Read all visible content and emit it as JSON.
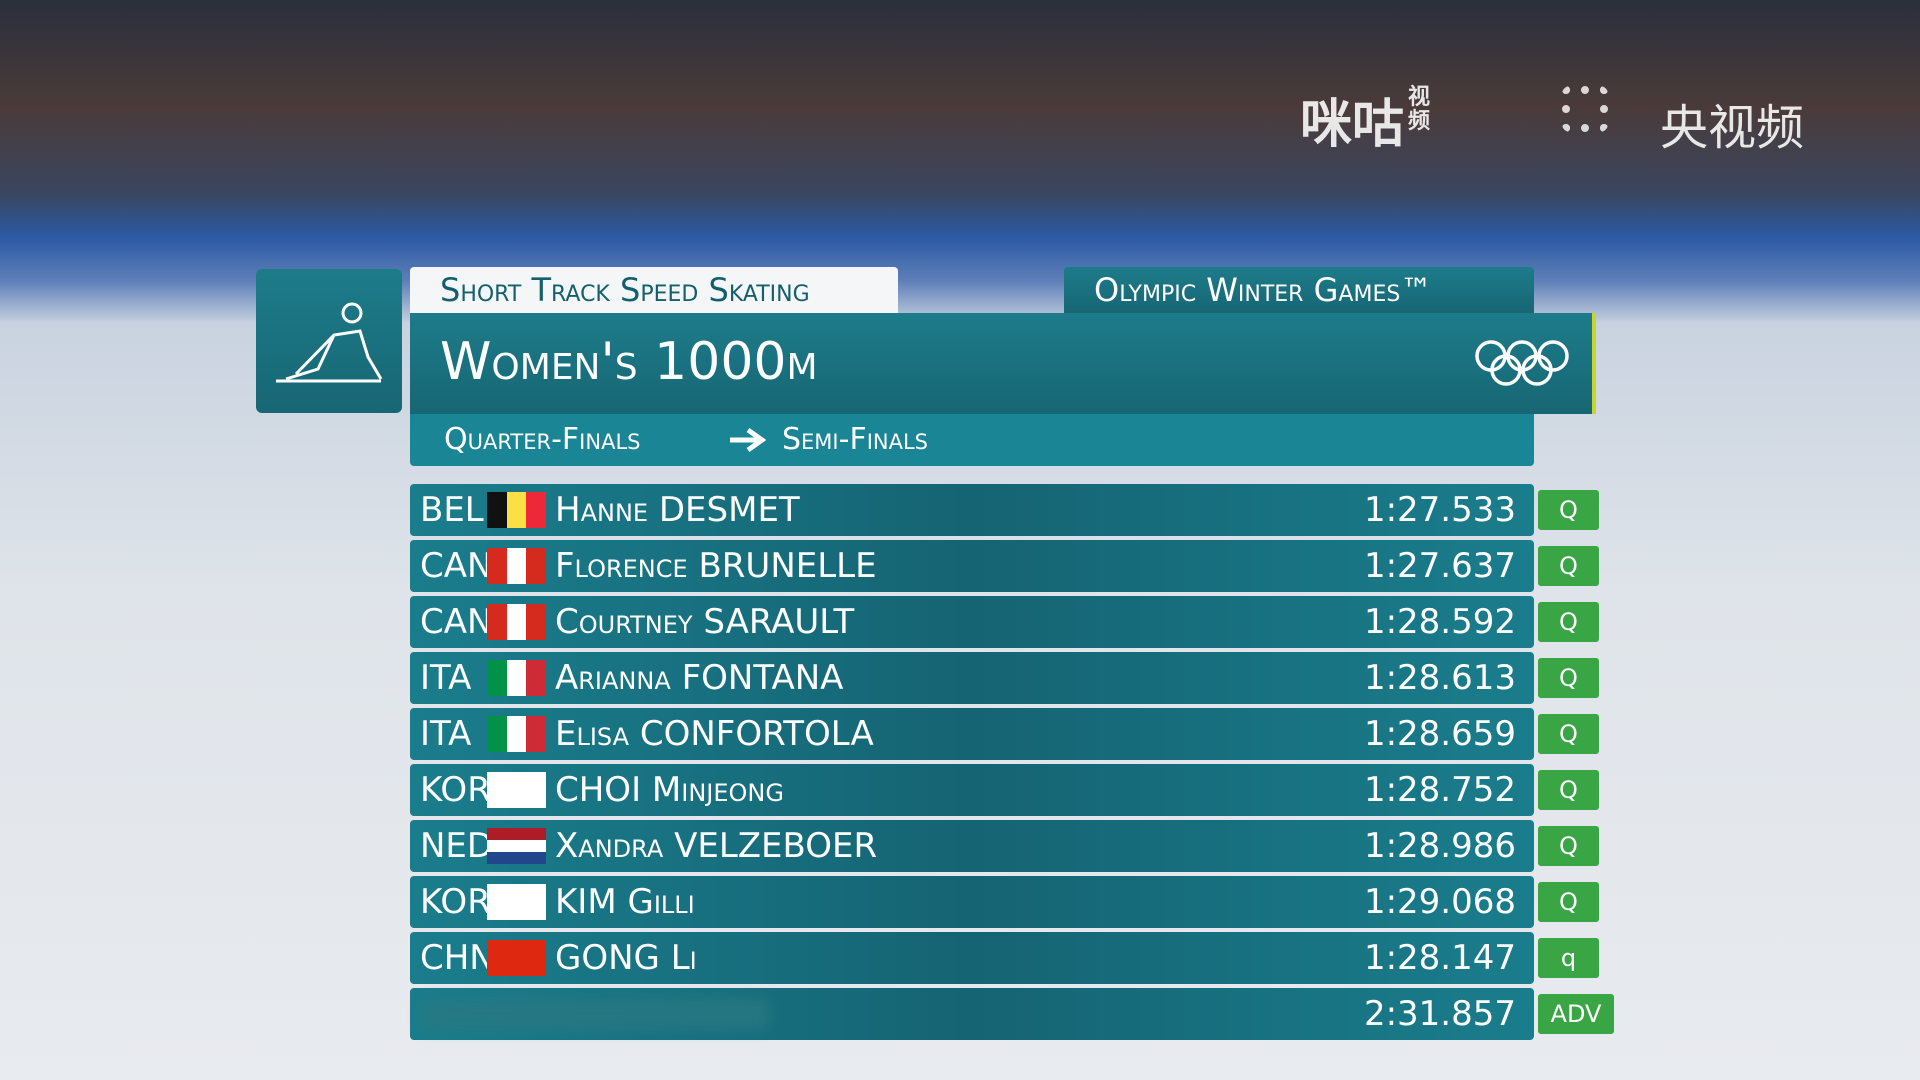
{
  "header": {
    "sport": "Short Track Speed Skating",
    "games": "Olympic Winter Games™",
    "event": "Women's 1000m",
    "from_round": "Quarter-Finals",
    "to_round": "Semi-Finals"
  },
  "watermarks": {
    "migu": "咪咕",
    "migu_small": "视频",
    "cctv": "央视频"
  },
  "results": [
    {
      "noc": "BEL",
      "name": "Hanne DESMET",
      "time": "1:27.533",
      "qual": "Q",
      "flag": [
        "#111111",
        "#fae042",
        "#ed2939"
      ],
      "flag_dir": "v"
    },
    {
      "noc": "CAN",
      "name": "Florence BRUNELLE",
      "time": "1:27.637",
      "qual": "Q",
      "flag": [
        "#d52b1e",
        "#ffffff",
        "#d52b1e"
      ],
      "flag_dir": "v"
    },
    {
      "noc": "CAN",
      "name": "Courtney SARAULT",
      "time": "1:28.592",
      "qual": "Q",
      "flag": [
        "#d52b1e",
        "#ffffff",
        "#d52b1e"
      ],
      "flag_dir": "v"
    },
    {
      "noc": "ITA",
      "name": "Arianna FONTANA",
      "time": "1:28.613",
      "qual": "Q",
      "flag": [
        "#009246",
        "#ffffff",
        "#ce2b37"
      ],
      "flag_dir": "v"
    },
    {
      "noc": "ITA",
      "name": "Elisa CONFORTOLA",
      "time": "1:28.659",
      "qual": "Q",
      "flag": [
        "#009246",
        "#ffffff",
        "#ce2b37"
      ],
      "flag_dir": "v"
    },
    {
      "noc": "KOR",
      "name": "CHOI Minjeong",
      "time": "1:28.752",
      "qual": "Q",
      "flag": [
        "#ffffff"
      ],
      "flag_dir": "v"
    },
    {
      "noc": "NED",
      "name": "Xandra VELZEBOER",
      "time": "1:28.986",
      "qual": "Q",
      "flag": [
        "#ae1c28",
        "#ffffff",
        "#21468b"
      ],
      "flag_dir": "h"
    },
    {
      "noc": "KOR",
      "name": "KIM Gilli",
      "time": "1:29.068",
      "qual": "Q",
      "flag": [
        "#ffffff"
      ],
      "flag_dir": "v"
    },
    {
      "noc": "CHN",
      "name": "GONG Li",
      "time": "1:28.147",
      "qual": "q",
      "flag": [
        "#de2910"
      ],
      "flag_dir": "v"
    },
    {
      "time": "2:31.857",
      "qual": "ADV"
    }
  ]
}
